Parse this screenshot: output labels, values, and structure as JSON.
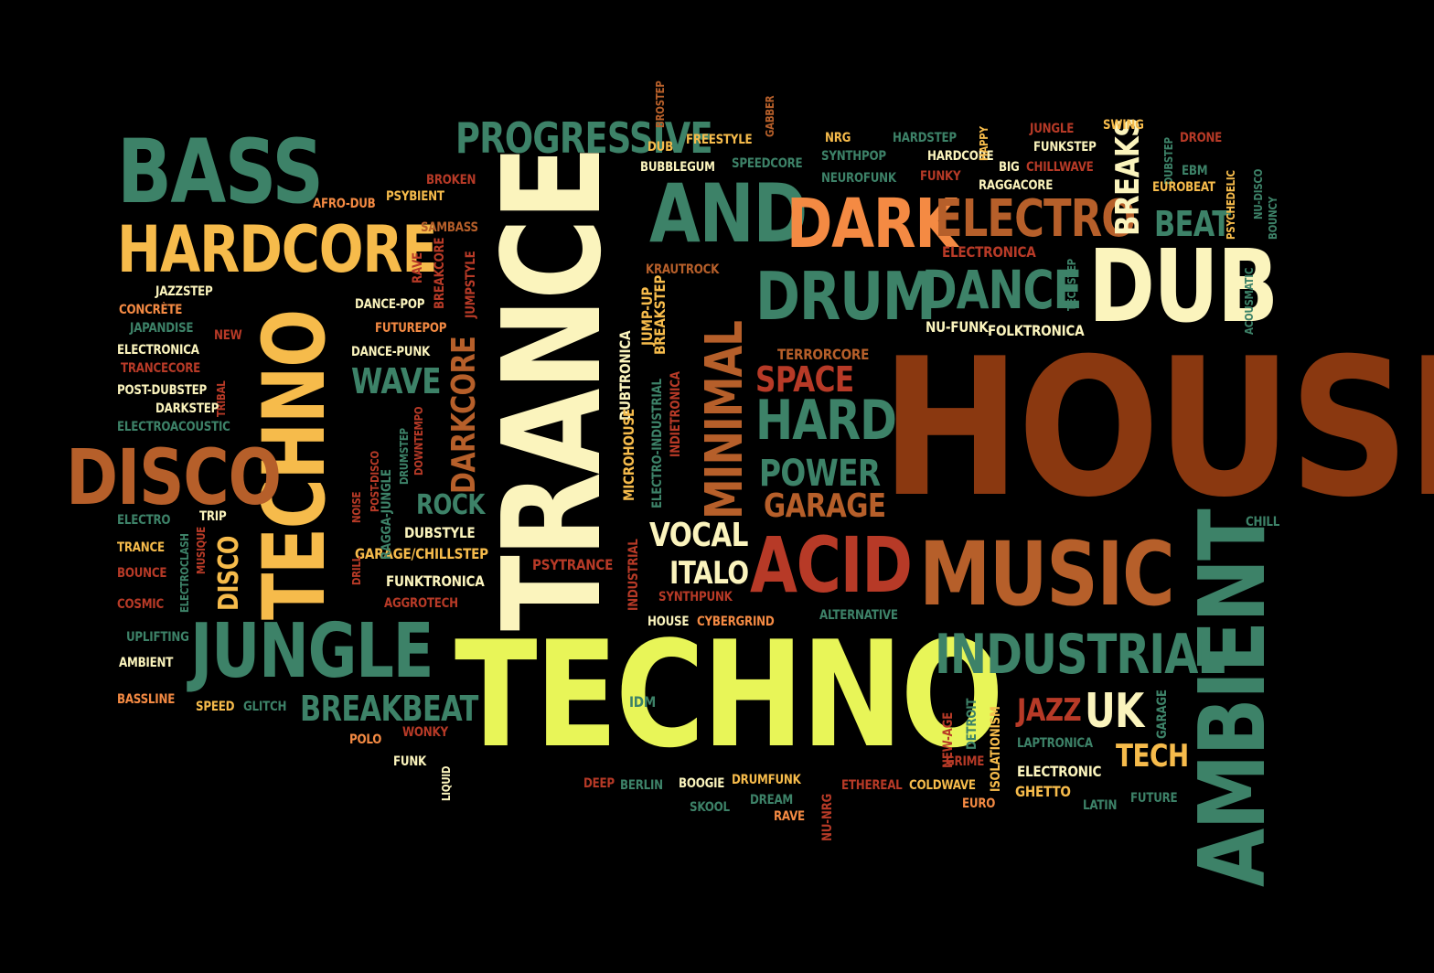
{
  "palette": {
    "teal": "#3d8268",
    "cream": "#fbf4bd",
    "yellow": "#f6bb4b",
    "lime": "#e8f558",
    "orange": "#f48a43",
    "brown": "#8a3810",
    "rust": "#b65f2a",
    "red": "#b73a27",
    "white": "#ffffff"
  },
  "words": [
    {
      "text": "HOUSE",
      "color": "brown"
    },
    {
      "text": "TECHNO",
      "color": "lime"
    },
    {
      "text": "TRANCE",
      "color": "cream"
    },
    {
      "text": "AMBIENT",
      "color": "teal"
    },
    {
      "text": "TECHNO",
      "color": "yellow"
    },
    {
      "text": "MUSIC",
      "color": "rust"
    },
    {
      "text": "DUB",
      "color": "cream"
    },
    {
      "text": "JUNGLE",
      "color": "teal"
    },
    {
      "text": "BASS",
      "color": "teal"
    },
    {
      "text": "HARDCORE",
      "color": "yellow"
    },
    {
      "text": "DISCO",
      "color": "rust"
    },
    {
      "text": "AND",
      "color": "teal"
    },
    {
      "text": "DARK",
      "color": "orange"
    },
    {
      "text": "ACID",
      "color": "red"
    },
    {
      "text": "INDUSTRIAL",
      "color": "teal"
    },
    {
      "text": "ELECTRO",
      "color": "rust"
    },
    {
      "text": "DRUM",
      "color": "teal"
    },
    {
      "text": "DANCE",
      "color": "teal"
    },
    {
      "text": "MINIMAL",
      "color": "rust"
    },
    {
      "text": "PROGRESSIVE",
      "color": "teal"
    },
    {
      "text": "HARD",
      "color": "teal"
    },
    {
      "text": "POWER",
      "color": "teal"
    },
    {
      "text": "GARAGE",
      "color": "rust"
    },
    {
      "text": "SPACE",
      "color": "red"
    },
    {
      "text": "UK",
      "color": "cream"
    },
    {
      "text": "VOCAL",
      "color": "cream"
    },
    {
      "text": "ITALO",
      "color": "cream"
    },
    {
      "text": "BREAKBEAT",
      "color": "teal"
    },
    {
      "text": "BREAKS",
      "color": "cream"
    },
    {
      "text": "BEAT",
      "color": "teal"
    },
    {
      "text": "DARKCORE",
      "color": "rust"
    },
    {
      "text": "WAVE",
      "color": "teal"
    },
    {
      "text": "ROCK",
      "color": "teal"
    },
    {
      "text": "DISCO",
      "color": "yellow"
    },
    {
      "text": "JAZZ",
      "color": "red"
    },
    {
      "text": "TECH",
      "color": "yellow"
    },
    {
      "text": "PSYTRANCE",
      "color": "red"
    },
    {
      "text": "FUNKTRONICA",
      "color": "cream"
    },
    {
      "text": "AGGROTECH",
      "color": "red"
    },
    {
      "text": "GARAGE/CHILLSTEP",
      "color": "yellow"
    },
    {
      "text": "DUBSTYLE",
      "color": "cream"
    },
    {
      "text": "NU-FUNK",
      "color": "cream"
    },
    {
      "text": "FOLKTRONICA",
      "color": "cream"
    },
    {
      "text": "TERRORCORE",
      "color": "rust"
    },
    {
      "text": "ELECTRONICA",
      "color": "red"
    },
    {
      "text": "KRAUTROCK",
      "color": "rust"
    },
    {
      "text": "JUMP-UP",
      "color": "yellow"
    },
    {
      "text": "BREAKSTEP",
      "color": "yellow"
    },
    {
      "text": "DUBTRONICA",
      "color": "cream"
    },
    {
      "text": "MICROHOUSE",
      "color": "yellow"
    },
    {
      "text": "INDUSTRIAL",
      "color": "red"
    },
    {
      "text": "ELECTRO-INDUSTRIAL",
      "color": "teal"
    },
    {
      "text": "INDIETRONICA",
      "color": "red"
    },
    {
      "text": "SYNTHPUNK",
      "color": "red"
    },
    {
      "text": "HOUSE",
      "color": "cream"
    },
    {
      "text": "CYBERGRIND",
      "color": "orange"
    },
    {
      "text": "ALTERNATIVE",
      "color": "teal"
    },
    {
      "text": "IDM",
      "color": "teal"
    },
    {
      "text": "NEW-AGE",
      "color": "red"
    },
    {
      "text": "DETROIT",
      "color": "teal"
    },
    {
      "text": "ISOLATIONISM",
      "color": "yellow"
    },
    {
      "text": "LAPTRONICA",
      "color": "teal"
    },
    {
      "text": "ELECTRONIC",
      "color": "cream"
    },
    {
      "text": "GHETTO",
      "color": "yellow"
    },
    {
      "text": "GARAGE",
      "color": "teal"
    },
    {
      "text": "LATIN",
      "color": "teal"
    },
    {
      "text": "FUTURE",
      "color": "teal"
    },
    {
      "text": "CHILL",
      "color": "teal"
    },
    {
      "text": "GRIME",
      "color": "red"
    },
    {
      "text": "EURO",
      "color": "orange"
    },
    {
      "text": "COLDWAVE",
      "color": "yellow"
    },
    {
      "text": "ETHEREAL",
      "color": "red"
    },
    {
      "text": "NU-NRG",
      "color": "red"
    },
    {
      "text": "DREAM",
      "color": "teal"
    },
    {
      "text": "RAVE",
      "color": "orange"
    },
    {
      "text": "SKOOL",
      "color": "teal"
    },
    {
      "text": "DRUMFUNK",
      "color": "yellow"
    },
    {
      "text": "BOOGIE",
      "color": "cream"
    },
    {
      "text": "BERLIN",
      "color": "teal"
    },
    {
      "text": "DEEP",
      "color": "red"
    },
    {
      "text": "LIQUID",
      "color": "cream"
    },
    {
      "text": "FUNK",
      "color": "cream"
    },
    {
      "text": "WONKY",
      "color": "red"
    },
    {
      "text": "POLO",
      "color": "orange"
    },
    {
      "text": "GLITCH",
      "color": "teal"
    },
    {
      "text": "SPEED",
      "color": "yellow"
    },
    {
      "text": "BASSLINE",
      "color": "orange"
    },
    {
      "text": "AMBIENT",
      "color": "cream"
    },
    {
      "text": "UPLIFTING",
      "color": "teal"
    },
    {
      "text": "COSMIC",
      "color": "red"
    },
    {
      "text": "BOUNCE",
      "color": "red"
    },
    {
      "text": "TRANCE",
      "color": "yellow"
    },
    {
      "text": "ELECTRO",
      "color": "teal"
    },
    {
      "text": "ELECTROCLASH",
      "color": "teal"
    },
    {
      "text": "MUSIQUE",
      "color": "red"
    },
    {
      "text": "TRIP",
      "color": "cream"
    },
    {
      "text": "NOISE",
      "color": "red"
    },
    {
      "text": "DRILL",
      "color": "red"
    },
    {
      "text": "POST-DISCO",
      "color": "red"
    },
    {
      "text": "RAGGA-JUNGLE",
      "color": "teal"
    },
    {
      "text": "DRUMSTEP",
      "color": "teal"
    },
    {
      "text": "DOWNTEMPO",
      "color": "red"
    },
    {
      "text": "DANCE-PUNK",
      "color": "cream"
    },
    {
      "text": "FUTUREPOP",
      "color": "orange"
    },
    {
      "text": "DANCE-POP",
      "color": "cream"
    },
    {
      "text": "JUMPSTYLE",
      "color": "red"
    },
    {
      "text": "BREAKCORE",
      "color": "red"
    },
    {
      "text": "RAVE",
      "color": "red"
    },
    {
      "text": "SAMBASS",
      "color": "rust"
    },
    {
      "text": "BROKEN",
      "color": "red"
    },
    {
      "text": "PSYBIENT",
      "color": "yellow"
    },
    {
      "text": "AFRO-DUB",
      "color": "orange"
    },
    {
      "text": "JAZZSTEP",
      "color": "cream"
    },
    {
      "text": "CONCRÈTE",
      "color": "orange"
    },
    {
      "text": "JAPANDISE",
      "color": "teal"
    },
    {
      "text": "NEW",
      "color": "red"
    },
    {
      "text": "ELECTRONICA",
      "color": "cream"
    },
    {
      "text": "TRANCECORE",
      "color": "red"
    },
    {
      "text": "TRIBAL",
      "color": "red"
    },
    {
      "text": "POST-DUBSTEP",
      "color": "cream"
    },
    {
      "text": "DARKSTEP",
      "color": "cream"
    },
    {
      "text": "ELECTROACOUSTIC",
      "color": "teal"
    },
    {
      "text": "DUB",
      "color": "yellow"
    },
    {
      "text": "FREESTYLE",
      "color": "yellow"
    },
    {
      "text": "GABBER",
      "color": "rust"
    },
    {
      "text": "BROSTEP",
      "color": "rust"
    },
    {
      "text": "BUBBLEGUM",
      "color": "cream"
    },
    {
      "text": "SPEEDCORE",
      "color": "teal"
    },
    {
      "text": "NRG",
      "color": "yellow"
    },
    {
      "text": "SYNTHPOP",
      "color": "teal"
    },
    {
      "text": "NEUROFUNK",
      "color": "teal"
    },
    {
      "text": "HARDSTEP",
      "color": "teal"
    },
    {
      "text": "HARDCORE",
      "color": "cream"
    },
    {
      "text": "FUNKY",
      "color": "red"
    },
    {
      "text": "BIG",
      "color": "cream"
    },
    {
      "text": "RAGGACORE",
      "color": "cream"
    },
    {
      "text": "HAPPY",
      "color": "yellow"
    },
    {
      "text": "JUNGLE",
      "color": "red"
    },
    {
      "text": "FUNKSTEP",
      "color": "cream"
    },
    {
      "text": "CHILLWAVE",
      "color": "red"
    },
    {
      "text": "SWING",
      "color": "yellow"
    },
    {
      "text": "DUBSTEP",
      "color": "teal"
    },
    {
      "text": "DRONE",
      "color": "red"
    },
    {
      "text": "EBM",
      "color": "teal"
    },
    {
      "text": "EUROBEAT",
      "color": "yellow"
    },
    {
      "text": "PSYCHEDELIC",
      "color": "yellow"
    },
    {
      "text": "NU-DISCO",
      "color": "teal"
    },
    {
      "text": "BOUNCY",
      "color": "teal"
    },
    {
      "text": "ACOUSMATIC",
      "color": "teal"
    },
    {
      "text": "TECHSTEP",
      "color": "teal"
    }
  ]
}
